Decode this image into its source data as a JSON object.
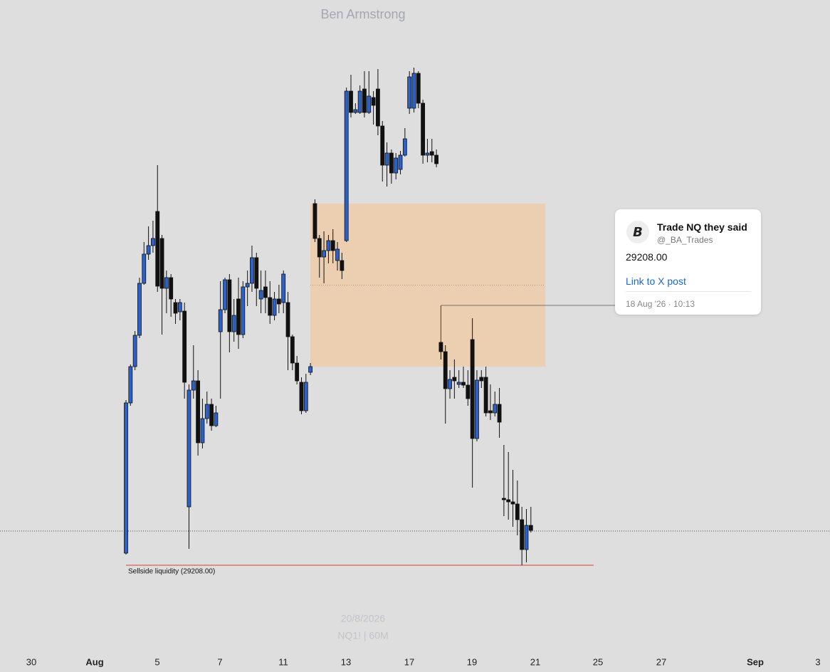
{
  "chart_data": {
    "type": "candlestick",
    "title": "Ben Armstrong",
    "watermark_date": "20/8/2026",
    "watermark_symbol": "NQ1! | 60M",
    "ylim": [
      28972,
      30796
    ],
    "up_color": "#2a62c9",
    "down_color": "#111111",
    "xticks": [
      "30",
      "Aug",
      "5",
      "7",
      "11",
      "13",
      "17",
      "19",
      "21",
      "25",
      "27",
      "Sep",
      "3"
    ],
    "zone": {
      "top": 30224,
      "bottom": 29766,
      "color": "#f0c9a0"
    },
    "current_price": 29304,
    "liquidity": {
      "value": 29208,
      "label": "Sellside liquidity (29208.00)",
      "color": "#e03a3a"
    },
    "post": {
      "name": "Trade NQ they said",
      "handle": "@_BA_Trades",
      "value": "29208.00",
      "link": "Link to X post",
      "date": "18 Aug '26 · 10:13",
      "anchor_candle": 70
    },
    "ohlc": [
      [
        29242,
        29672,
        29238,
        29664
      ],
      [
        29664,
        29772,
        29656,
        29766
      ],
      [
        29766,
        29866,
        29756,
        29854
      ],
      [
        29854,
        30016,
        29846,
        30000
      ],
      [
        30000,
        30116,
        29996,
        30082
      ],
      [
        30082,
        30160,
        30066,
        30106
      ],
      [
        30106,
        30176,
        30086,
        30126
      ],
      [
        30202,
        30332,
        29976,
        29992
      ],
      [
        30126,
        30136,
        29856,
        29986
      ],
      [
        29986,
        30036,
        29916,
        30016
      ],
      [
        30016,
        30026,
        29906,
        29956
      ],
      [
        29946,
        29956,
        29886,
        29916
      ],
      [
        29920,
        29956,
        29896,
        29946
      ],
      [
        29922,
        29946,
        29676,
        29722
      ],
      [
        29372,
        29716,
        29254,
        29700
      ],
      [
        29700,
        29826,
        29676,
        29726
      ],
      [
        29726,
        29756,
        29516,
        29552
      ],
      [
        29552,
        29676,
        29536,
        29620
      ],
      [
        29620,
        29696,
        29606,
        29660
      ],
      [
        29660,
        29676,
        29586,
        29600
      ],
      [
        29600,
        29656,
        29596,
        29636
      ],
      [
        29864,
        30006,
        29676,
        29926
      ],
      [
        29926,
        30016,
        29916,
        30010
      ],
      [
        30010,
        30026,
        29806,
        29864
      ],
      [
        29864,
        29956,
        29836,
        29910
      ],
      [
        29956,
        30016,
        29816,
        29856
      ],
      [
        29856,
        30006,
        29846,
        29990
      ],
      [
        29990,
        30036,
        29936,
        30000
      ],
      [
        30000,
        30106,
        29976,
        30072
      ],
      [
        30072,
        30086,
        29936,
        29986
      ],
      [
        29956,
        30036,
        29916,
        29980
      ],
      [
        29990,
        30036,
        29916,
        29960
      ],
      [
        29960,
        30006,
        29886,
        29910
      ],
      [
        29910,
        29976,
        29896,
        29956
      ],
      [
        29956,
        29996,
        29916,
        29942
      ],
      [
        29946,
        30036,
        29916,
        30026
      ],
      [
        29946,
        29976,
        29756,
        29850
      ],
      [
        29850,
        29856,
        29756,
        29776
      ],
      [
        29776,
        29796,
        29716,
        29726
      ],
      [
        29722,
        29736,
        29632,
        29642
      ],
      [
        29642,
        29746,
        29636,
        29722
      ],
      [
        29750,
        29776,
        29742,
        29766
      ],
      [
        30224,
        30236,
        30116,
        30126
      ],
      [
        30126,
        30136,
        30016,
        30074
      ],
      [
        30074,
        30146,
        30000,
        30092
      ],
      [
        30092,
        30136,
        30056,
        30120
      ],
      [
        30120,
        30152,
        30056,
        30092
      ],
      [
        30064,
        30116,
        30036,
        30096
      ],
      [
        30064,
        30086,
        30012,
        30036
      ],
      [
        30120,
        30550,
        30116,
        30540
      ],
      [
        30540,
        30586,
        30466,
        30480
      ],
      [
        30480,
        30506,
        30476,
        30488
      ],
      [
        30480,
        30556,
        30476,
        30540
      ],
      [
        30546,
        30596,
        30466,
        30480
      ],
      [
        30480,
        30596,
        30476,
        30526
      ],
      [
        30522,
        30540,
        30446,
        30500
      ],
      [
        30546,
        30602,
        30416,
        30442
      ],
      [
        30442,
        30456,
        30286,
        30332
      ],
      [
        30332,
        30396,
        30272,
        30366
      ],
      [
        30366,
        30376,
        30280,
        30310
      ],
      [
        30310,
        30366,
        30292,
        30352
      ],
      [
        30320,
        30372,
        30306,
        30360
      ],
      [
        30360,
        30436,
        30356,
        30406
      ],
      [
        30492,
        30596,
        30476,
        30580
      ],
      [
        30492,
        30606,
        30480,
        30590
      ],
      [
        30590,
        30596,
        30492,
        30506
      ],
      [
        30506,
        30516,
        30336,
        30360
      ],
      [
        30360,
        30406,
        30340,
        30366
      ],
      [
        30370,
        30406,
        30340,
        30360
      ],
      [
        30360,
        30376,
        30326,
        30336
      ],
      [
        29834,
        29938,
        29786,
        29808
      ],
      [
        29808,
        29826,
        29606,
        29704
      ],
      [
        29704,
        29756,
        29676,
        29730
      ],
      [
        29736,
        29786,
        29676,
        29726
      ],
      [
        29716,
        29756,
        29706,
        29722
      ],
      [
        29722,
        29766,
        29706,
        29714
      ],
      [
        29714,
        29756,
        29656,
        29676
      ],
      [
        29842,
        29902,
        29426,
        29564
      ],
      [
        29564,
        29756,
        29556,
        29728
      ],
      [
        29736,
        29756,
        29706,
        29726
      ],
      [
        29736,
        29766,
        29626,
        29636
      ],
      [
        29642,
        29716,
        29616,
        29636
      ],
      [
        29636,
        29696,
        29626,
        29660
      ],
      [
        29660,
        29706,
        29566,
        29610
      ],
      [
        29396,
        29546,
        29346,
        29392
      ],
      [
        29392,
        29526,
        29336,
        29386
      ],
      [
        29386,
        29476,
        29316,
        29380
      ],
      [
        29380,
        29446,
        29292,
        29336
      ],
      [
        29336,
        29372,
        29208,
        29252
      ],
      [
        29252,
        29366,
        29216,
        29320
      ],
      [
        29320,
        29372,
        29300,
        29306
      ]
    ]
  }
}
